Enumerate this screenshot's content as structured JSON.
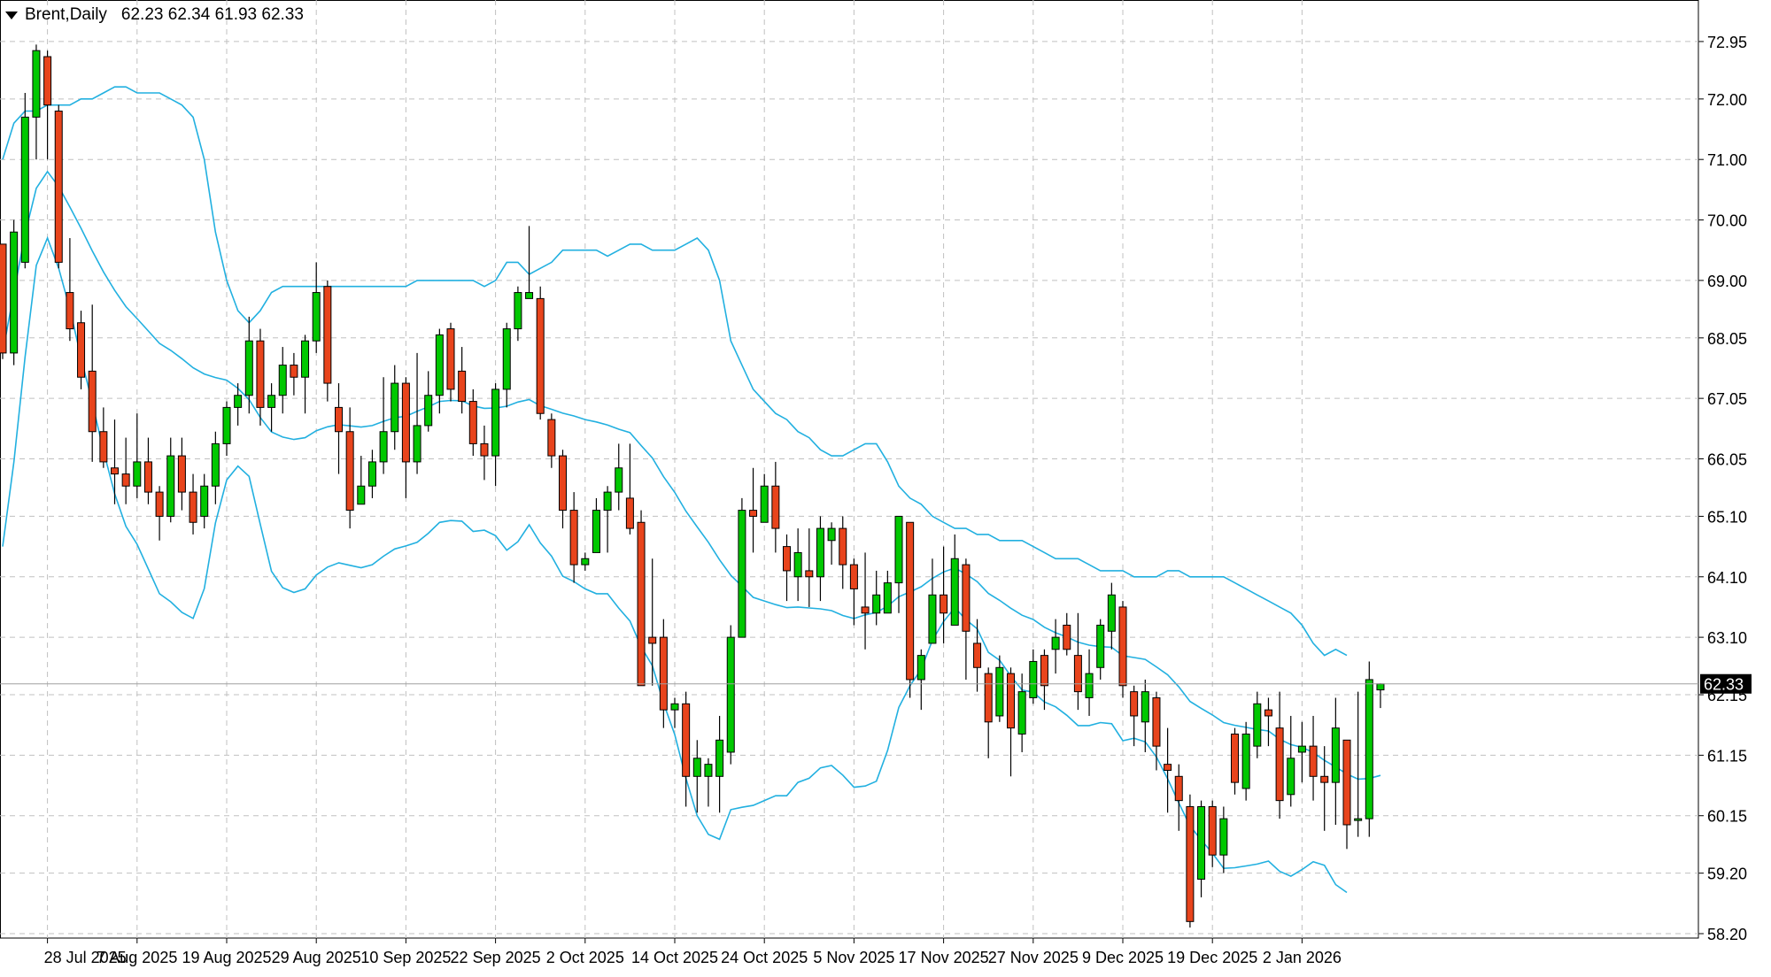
{
  "header": {
    "symbol": "Brent,Daily",
    "ohlc": "62.23 62.34 61.93 62.33"
  },
  "colors": {
    "background": "#ffffff",
    "grid": "#c0c0c0",
    "bull": "#00c800",
    "bear": "#e8441c",
    "outline": "#000000",
    "bands": "#22b0e0",
    "price_line": "#a0a0a0",
    "price_tag_bg": "#000000",
    "price_tag_text": "#ffffff"
  },
  "chart_data": {
    "type": "candlestick",
    "title": "Brent,Daily",
    "indicator": "Bollinger Bands",
    "ylim": [
      58.2,
      73.3
    ],
    "y_ticks": [
      "72.95",
      "72.00",
      "71.00",
      "70.00",
      "69.00",
      "68.05",
      "67.05",
      "66.05",
      "65.10",
      "64.10",
      "63.10",
      "62.15",
      "61.15",
      "60.15",
      "59.20",
      "58.20"
    ],
    "x_tick_labels": [
      "28 Jul 2025",
      "7 Aug 2025",
      "19 Aug 2025",
      "29 Aug 2025",
      "10 Sep 2025",
      "22 Sep 2025",
      "2 Oct 2025",
      "14 Oct 2025",
      "24 Oct 2025",
      "5 Nov 2025",
      "17 Nov 2025",
      "27 Nov 2025",
      "9 Dec 2025",
      "19 Dec 2025",
      "2 Jan 2026"
    ],
    "x_tick_bar_index": [
      4,
      12,
      20,
      28,
      36,
      44,
      52,
      60,
      68,
      76,
      84,
      92,
      100,
      108,
      116
    ],
    "current_price": "62.33",
    "candles": [
      [
        69.6,
        67.8,
        69.6,
        67.7
      ],
      [
        67.8,
        69.8,
        70.0,
        67.6
      ],
      [
        69.3,
        71.7,
        72.1,
        69.2
      ],
      [
        71.7,
        72.8,
        72.9,
        71.0
      ],
      [
        72.7,
        71.9,
        72.8,
        71.0
      ],
      [
        71.8,
        69.3,
        71.9,
        69.2
      ],
      [
        68.8,
        68.2,
        69.7,
        68.0
      ],
      [
        68.3,
        67.4,
        68.5,
        67.2
      ],
      [
        67.5,
        66.5,
        68.6,
        66.0
      ],
      [
        66.5,
        66.0,
        66.9,
        65.9
      ],
      [
        65.9,
        65.8,
        66.7,
        65.3
      ],
      [
        65.8,
        65.6,
        66.4,
        65.3
      ],
      [
        65.6,
        66.0,
        66.8,
        65.4
      ],
      [
        66.0,
        65.5,
        66.4,
        65.3
      ],
      [
        65.5,
        65.1,
        65.6,
        64.7
      ],
      [
        65.1,
        66.1,
        66.4,
        65.0
      ],
      [
        66.1,
        65.5,
        66.4,
        65.2
      ],
      [
        65.5,
        65.0,
        65.8,
        64.8
      ],
      [
        65.1,
        65.6,
        65.8,
        64.9
      ],
      [
        65.6,
        66.3,
        66.5,
        65.3
      ],
      [
        66.3,
        66.9,
        67.0,
        66.1
      ],
      [
        66.9,
        67.1,
        67.3,
        66.6
      ],
      [
        67.1,
        68.0,
        68.4,
        66.8
      ],
      [
        68.0,
        66.9,
        68.2,
        66.6
      ],
      [
        66.9,
        67.1,
        67.3,
        66.5
      ],
      [
        67.1,
        67.6,
        67.9,
        66.8
      ],
      [
        67.6,
        67.4,
        67.8,
        67.1
      ],
      [
        67.4,
        68.0,
        68.1,
        66.8
      ],
      [
        68.0,
        68.8,
        69.3,
        67.8
      ],
      [
        68.9,
        67.3,
        69.0,
        67.0
      ],
      [
        66.9,
        66.5,
        67.3,
        65.8
      ],
      [
        66.5,
        65.2,
        66.9,
        64.9
      ],
      [
        65.3,
        65.6,
        66.1,
        65.4
      ],
      [
        65.6,
        66.0,
        66.2,
        65.4
      ],
      [
        66.0,
        66.5,
        67.4,
        65.8
      ],
      [
        66.5,
        67.3,
        67.6,
        66.2
      ],
      [
        67.3,
        66.0,
        67.4,
        65.4
      ],
      [
        66.0,
        66.6,
        67.8,
        65.8
      ],
      [
        66.6,
        67.1,
        67.5,
        66.5
      ],
      [
        67.1,
        68.1,
        68.2,
        66.8
      ],
      [
        68.2,
        67.2,
        68.3,
        67.0
      ],
      [
        67.5,
        67.0,
        67.9,
        66.8
      ],
      [
        67.0,
        66.3,
        67.2,
        66.1
      ],
      [
        66.3,
        66.1,
        66.6,
        65.7
      ],
      [
        66.1,
        67.2,
        67.3,
        65.6
      ],
      [
        67.2,
        68.2,
        68.3,
        66.9
      ],
      [
        68.2,
        68.8,
        68.9,
        68.0
      ],
      [
        68.7,
        68.8,
        69.9,
        68.7
      ],
      [
        68.7,
        66.8,
        68.9,
        66.7
      ],
      [
        66.7,
        66.1,
        66.8,
        65.9
      ],
      [
        66.1,
        65.2,
        66.2,
        64.9
      ],
      [
        65.2,
        64.3,
        65.5,
        64.0
      ],
      [
        64.3,
        64.4,
        64.5,
        64.2
      ],
      [
        64.5,
        65.2,
        65.4,
        64.5
      ],
      [
        65.2,
        65.5,
        65.6,
        64.5
      ],
      [
        65.5,
        65.9,
        66.3,
        65.2
      ],
      [
        65.4,
        64.9,
        66.3,
        64.8
      ],
      [
        65.0,
        62.3,
        65.2,
        62.3
      ],
      [
        63.1,
        63.0,
        64.4,
        62.3
      ],
      [
        63.1,
        61.9,
        63.4,
        61.6
      ],
      [
        61.9,
        62.0,
        62.1,
        61.6
      ],
      [
        62.0,
        60.8,
        62.2,
        60.3
      ],
      [
        60.8,
        61.1,
        61.4,
        60.2
      ],
      [
        60.8,
        61.0,
        61.1,
        60.3
      ],
      [
        60.8,
        61.4,
        61.8,
        60.2
      ],
      [
        61.2,
        63.1,
        63.3,
        61.0
      ],
      [
        63.1,
        65.2,
        65.4,
        63.3
      ],
      [
        65.2,
        65.1,
        65.9,
        64.5
      ],
      [
        65.0,
        65.6,
        65.8,
        65.0
      ],
      [
        65.6,
        64.9,
        66.0,
        64.5
      ],
      [
        64.6,
        64.2,
        64.8,
        63.7
      ],
      [
        64.1,
        64.5,
        64.9,
        63.7
      ],
      [
        64.2,
        64.1,
        64.9,
        63.6
      ],
      [
        64.1,
        64.9,
        65.1,
        63.7
      ],
      [
        64.7,
        64.9,
        65.0,
        64.3
      ],
      [
        64.9,
        64.3,
        65.1,
        63.9
      ],
      [
        64.3,
        63.9,
        64.4,
        63.3
      ],
      [
        63.6,
        63.5,
        64.5,
        62.9
      ],
      [
        63.5,
        63.8,
        64.2,
        63.3
      ],
      [
        63.5,
        64.0,
        64.2,
        63.5
      ],
      [
        64.0,
        65.1,
        65.1,
        63.5
      ],
      [
        65.0,
        62.4,
        65.0,
        62.1
      ],
      [
        62.4,
        62.8,
        62.9,
        61.9
      ],
      [
        63.0,
        63.8,
        64.4,
        63.4
      ],
      [
        63.8,
        63.5,
        64.6,
        63.0
      ],
      [
        63.3,
        64.4,
        64.8,
        63.3
      ],
      [
        64.3,
        63.2,
        64.4,
        62.4
      ],
      [
        63.0,
        62.6,
        63.4,
        62.2
      ],
      [
        62.5,
        61.7,
        62.6,
        61.1
      ],
      [
        61.8,
        62.6,
        62.8,
        61.7
      ],
      [
        62.5,
        61.6,
        62.6,
        60.8
      ],
      [
        61.5,
        62.2,
        62.5,
        61.2
      ],
      [
        62.1,
        62.7,
        62.9,
        62.0
      ],
      [
        62.8,
        62.3,
        62.9,
        61.9
      ],
      [
        62.9,
        63.1,
        63.4,
        62.5
      ],
      [
        63.3,
        62.9,
        63.5,
        62.8
      ],
      [
        62.8,
        62.2,
        63.5,
        61.9
      ],
      [
        62.1,
        62.5,
        62.9,
        61.8
      ],
      [
        62.6,
        63.3,
        63.4,
        62.4
      ],
      [
        63.2,
        63.8,
        64.0,
        62.9
      ],
      [
        63.6,
        62.3,
        63.7,
        62.1
      ],
      [
        62.2,
        61.8,
        62.3,
        61.3
      ],
      [
        61.7,
        62.2,
        62.4,
        61.2
      ],
      [
        62.1,
        61.3,
        62.2,
        60.9
      ],
      [
        61.0,
        60.9,
        61.6,
        60.2
      ],
      [
        60.8,
        60.4,
        61.0,
        59.9
      ],
      [
        60.3,
        58.4,
        60.5,
        58.3
      ],
      [
        59.1,
        60.3,
        60.4,
        58.8
      ],
      [
        60.3,
        59.5,
        60.4,
        59.3
      ],
      [
        59.5,
        60.1,
        60.3,
        59.2
      ],
      [
        61.5,
        60.7,
        61.6,
        60.5
      ],
      [
        60.6,
        61.5,
        61.7,
        60.4
      ],
      [
        61.3,
        62.0,
        62.2,
        61.1
      ],
      [
        61.9,
        61.8,
        62.1,
        61.3
      ],
      [
        61.6,
        60.4,
        62.2,
        60.1
      ],
      [
        60.5,
        61.1,
        61.8,
        60.3
      ],
      [
        61.2,
        61.3,
        61.7,
        60.7
      ],
      [
        61.3,
        60.8,
        61.8,
        60.4
      ],
      [
        60.8,
        60.7,
        61.3,
        59.9
      ],
      [
        60.7,
        61.6,
        62.1,
        60.0
      ],
      [
        61.4,
        60.0,
        61.4,
        59.6
      ],
      [
        60.1,
        60.1,
        62.2,
        59.8
      ],
      [
        60.1,
        62.4,
        62.7,
        59.8
      ],
      [
        62.23,
        62.33,
        62.34,
        61.93
      ]
    ],
    "bollinger": {
      "upper": [
        71.0,
        71.6,
        71.8,
        71.8,
        71.9,
        71.9,
        71.9,
        72.0,
        72.0,
        72.1,
        72.2,
        72.2,
        72.1,
        72.1,
        72.1,
        72.0,
        71.9,
        71.7,
        71.0,
        69.8,
        69.0,
        68.5,
        68.3,
        68.5,
        68.8,
        68.9,
        68.9,
        68.9,
        68.9,
        68.9,
        68.9,
        68.9,
        68.9,
        68.9,
        68.9,
        68.9,
        68.9,
        69.0,
        69.0,
        69.0,
        69.0,
        69.0,
        69.0,
        68.9,
        69.0,
        69.3,
        69.3,
        69.1,
        69.2,
        69.3,
        69.5,
        69.5,
        69.5,
        69.5,
        69.4,
        69.5,
        69.6,
        69.6,
        69.5,
        69.5,
        69.5,
        69.6,
        69.7,
        69.5,
        69.0,
        68.0,
        67.6,
        67.2,
        67.0,
        66.8,
        66.7,
        66.5,
        66.4,
        66.2,
        66.1,
        66.1,
        66.2,
        66.3,
        66.3,
        66.0,
        65.6,
        65.4,
        65.3,
        65.1,
        65.0,
        64.9,
        64.9,
        64.8,
        64.8,
        64.7,
        64.7,
        64.7,
        64.6,
        64.5,
        64.4,
        64.4,
        64.4,
        64.3,
        64.2,
        64.2,
        64.2,
        64.1,
        64.1,
        64.1,
        64.2,
        64.2,
        64.1,
        64.1,
        64.1,
        64.1,
        64.0,
        63.9,
        63.8,
        63.7,
        63.6,
        63.5,
        63.3,
        63.0,
        62.8,
        62.9,
        62.8
      ]
    }
  }
}
